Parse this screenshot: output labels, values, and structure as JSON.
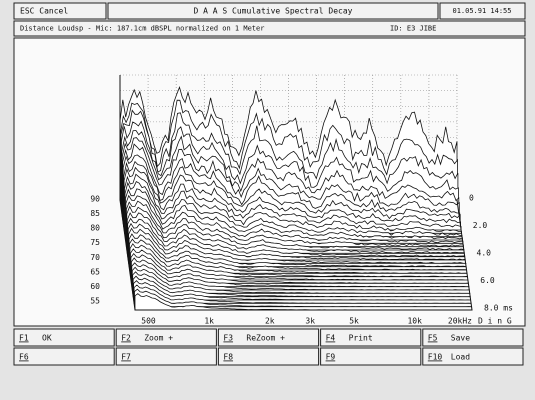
{
  "top_bar": {
    "cancel": "ESC Cancel",
    "title": "D A A S   Cumulative Spectral Decay",
    "datetime": "01.05.91 14:55"
  },
  "info_bar": {
    "text": "Distance Loudsp - Mic: 187.1cm dBSPL normalized on 1 Meter",
    "id": "ID: E3 JIBE"
  },
  "plot": {
    "y_labels": [
      "90",
      "85",
      "80",
      "75",
      "70",
      "65",
      "60",
      "55"
    ],
    "x_labels": [
      "500",
      "1k",
      "2k",
      "3k",
      "5k",
      "10k",
      "20kHz"
    ],
    "x_note": "D i n G",
    "time_labels": [
      "0",
      "2.0",
      "4.0",
      "6.0",
      "8.0 ms"
    ]
  },
  "buttons": [
    {
      "key": "F1",
      "label": "OK"
    },
    {
      "key": "F2",
      "label": "Zoom +"
    },
    {
      "key": "F3",
      "label": "ReZoom +"
    },
    {
      "key": "F4",
      "label": "Print"
    },
    {
      "key": "F5",
      "label": "Save"
    },
    {
      "key": "F6"
    },
    {
      "key": "F7"
    },
    {
      "key": "F8"
    },
    {
      "key": "F9"
    },
    {
      "key": "F10",
      "label": "Load"
    }
  ]
}
